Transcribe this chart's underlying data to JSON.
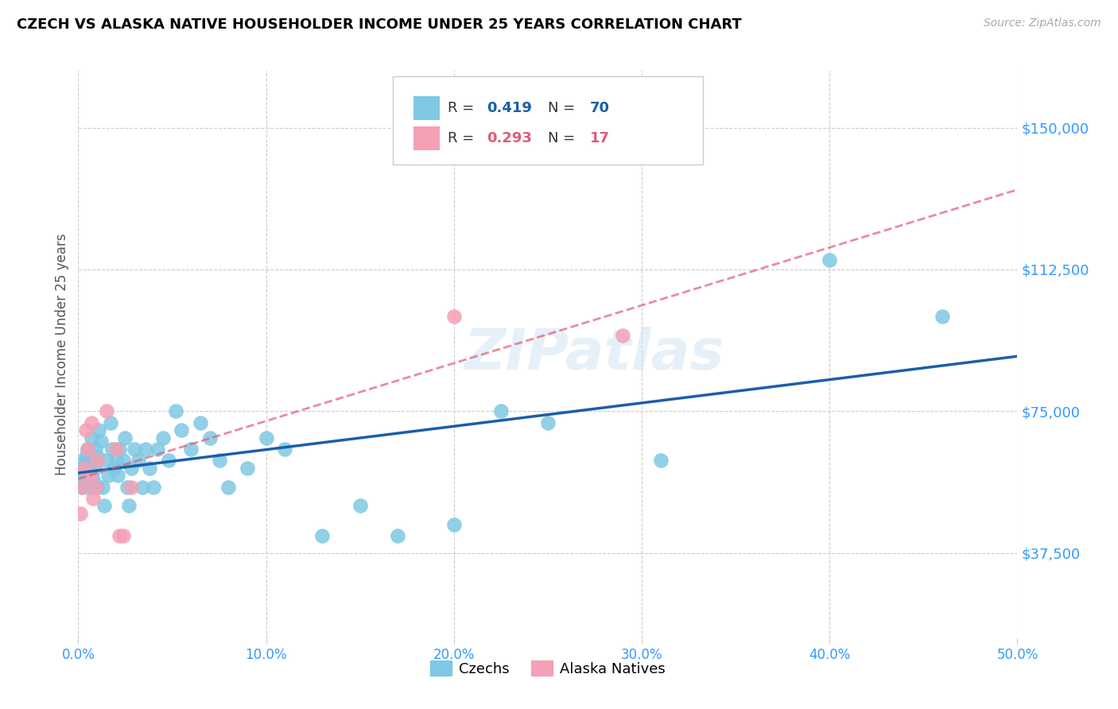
{
  "title": "CZECH VS ALASKA NATIVE HOUSEHOLDER INCOME UNDER 25 YEARS CORRELATION CHART",
  "source": "Source: ZipAtlas.com",
  "xlabel_ticks": [
    "0.0%",
    "10.0%",
    "20.0%",
    "30.0%",
    "40.0%",
    "50.0%"
  ],
  "xlabel_vals": [
    0.0,
    0.1,
    0.2,
    0.3,
    0.4,
    0.5
  ],
  "ylabel_ticks": [
    "$37,500",
    "$75,000",
    "$112,500",
    "$150,000"
  ],
  "ylabel_vals": [
    37500,
    75000,
    112500,
    150000
  ],
  "ylabel_label": "Householder Income Under 25 years",
  "xlim": [
    0.0,
    0.5
  ],
  "ylim": [
    15000,
    165000
  ],
  "watermark": "ZIPatlas",
  "legend_labels": [
    "Czechs",
    "Alaska Natives"
  ],
  "legend_r": [
    "0.419",
    "0.293"
  ],
  "legend_n": [
    "70",
    "17"
  ],
  "czech_color": "#7ec8e3",
  "alaska_color": "#f4a0b5",
  "czech_line_color": "#1a5fa8",
  "alaska_line_color": "#e05a7a",
  "grid_color": "#cccccc",
  "background_color": "#ffffff",
  "title_color": "#000000",
  "axis_label_color": "#3399ff",
  "source_color": "#aaaaaa",
  "czech_x": [
    0.001,
    0.002,
    0.002,
    0.003,
    0.003,
    0.003,
    0.004,
    0.004,
    0.004,
    0.005,
    0.005,
    0.005,
    0.005,
    0.006,
    0.006,
    0.006,
    0.007,
    0.007,
    0.008,
    0.008,
    0.008,
    0.009,
    0.009,
    0.01,
    0.01,
    0.011,
    0.012,
    0.013,
    0.014,
    0.015,
    0.016,
    0.017,
    0.018,
    0.019,
    0.02,
    0.021,
    0.022,
    0.024,
    0.025,
    0.026,
    0.027,
    0.028,
    0.03,
    0.032,
    0.034,
    0.036,
    0.038,
    0.04,
    0.042,
    0.045,
    0.048,
    0.052,
    0.055,
    0.06,
    0.065,
    0.07,
    0.075,
    0.08,
    0.09,
    0.1,
    0.11,
    0.13,
    0.15,
    0.17,
    0.2,
    0.225,
    0.25,
    0.31,
    0.4,
    0.46
  ],
  "czech_y": [
    57000,
    55000,
    60000,
    58000,
    62000,
    56000,
    59000,
    63000,
    57000,
    55000,
    61000,
    58000,
    65000,
    56000,
    60000,
    62000,
    58000,
    68000,
    57000,
    55000,
    62000,
    65000,
    60000,
    63000,
    55000,
    70000,
    67000,
    55000,
    50000,
    62000,
    58000,
    72000,
    65000,
    60000,
    62000,
    58000,
    65000,
    62000,
    68000,
    55000,
    50000,
    60000,
    65000,
    62000,
    55000,
    65000,
    60000,
    55000,
    65000,
    68000,
    62000,
    75000,
    70000,
    65000,
    72000,
    68000,
    62000,
    55000,
    60000,
    68000,
    65000,
    42000,
    50000,
    42000,
    45000,
    75000,
    72000,
    62000,
    115000,
    100000
  ],
  "alaska_x": [
    0.001,
    0.002,
    0.003,
    0.004,
    0.005,
    0.006,
    0.007,
    0.008,
    0.009,
    0.01,
    0.015,
    0.02,
    0.022,
    0.024,
    0.028,
    0.2,
    0.29
  ],
  "alaska_y": [
    48000,
    55000,
    60000,
    70000,
    65000,
    58000,
    72000,
    52000,
    55000,
    62000,
    75000,
    65000,
    42000,
    42000,
    55000,
    100000,
    95000
  ]
}
